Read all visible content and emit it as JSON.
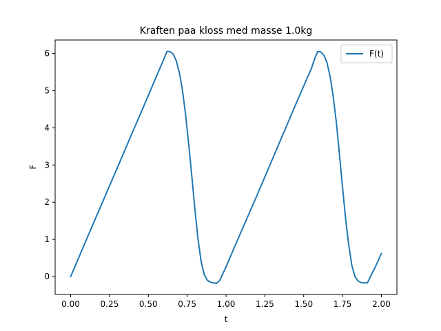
{
  "chart_data": {
    "type": "line",
    "title": "Kraften paa kloss med masse 1.0kg",
    "xlabel": "t",
    "ylabel": "F",
    "xlim": [
      -0.1,
      2.1
    ],
    "ylim": [
      -0.48,
      6.36
    ],
    "grid": false,
    "legend_placement": "top-right",
    "x_ticks": [
      "0.00",
      "0.25",
      "0.50",
      "0.75",
      "1.00",
      "1.25",
      "1.50",
      "1.75",
      "2.00"
    ],
    "y_ticks": [
      "0",
      "1",
      "2",
      "3",
      "4",
      "5",
      "6"
    ],
    "series": [
      {
        "name": "F(t)",
        "color": "#1f77b4",
        "x": [
          0.0,
          0.05,
          0.1,
          0.15,
          0.2,
          0.25,
          0.3,
          0.35,
          0.4,
          0.45,
          0.5,
          0.55,
          0.6,
          0.62,
          0.64,
          0.66,
          0.68,
          0.7,
          0.72,
          0.74,
          0.76,
          0.78,
          0.8,
          0.82,
          0.84,
          0.86,
          0.88,
          0.9,
          0.92,
          0.94,
          0.96,
          1.0,
          1.05,
          1.1,
          1.15,
          1.2,
          1.25,
          1.3,
          1.35,
          1.4,
          1.45,
          1.5,
          1.55,
          1.57,
          1.59,
          1.61,
          1.63,
          1.65,
          1.67,
          1.69,
          1.71,
          1.73,
          1.75,
          1.77,
          1.79,
          1.81,
          1.83,
          1.85,
          1.87,
          1.89,
          1.91,
          1.93,
          1.96,
          2.0
        ],
        "y": [
          0.0,
          0.49,
          0.98,
          1.47,
          1.95,
          2.44,
          2.92,
          3.41,
          3.9,
          4.38,
          4.87,
          5.36,
          5.85,
          6.05,
          6.05,
          5.98,
          5.8,
          5.48,
          5.0,
          4.35,
          3.55,
          2.7,
          1.8,
          1.0,
          0.4,
          0.05,
          -0.1,
          -0.15,
          -0.17,
          -0.18,
          -0.1,
          0.26,
          0.75,
          1.23,
          1.71,
          2.19,
          2.68,
          3.17,
          3.66,
          4.15,
          4.64,
          5.12,
          5.6,
          5.85,
          6.05,
          6.04,
          5.95,
          5.75,
          5.38,
          4.85,
          4.15,
          3.3,
          2.4,
          1.55,
          0.85,
          0.3,
          0.0,
          -0.12,
          -0.16,
          -0.17,
          -0.17,
          0.0,
          0.25,
          0.62
        ]
      }
    ]
  }
}
